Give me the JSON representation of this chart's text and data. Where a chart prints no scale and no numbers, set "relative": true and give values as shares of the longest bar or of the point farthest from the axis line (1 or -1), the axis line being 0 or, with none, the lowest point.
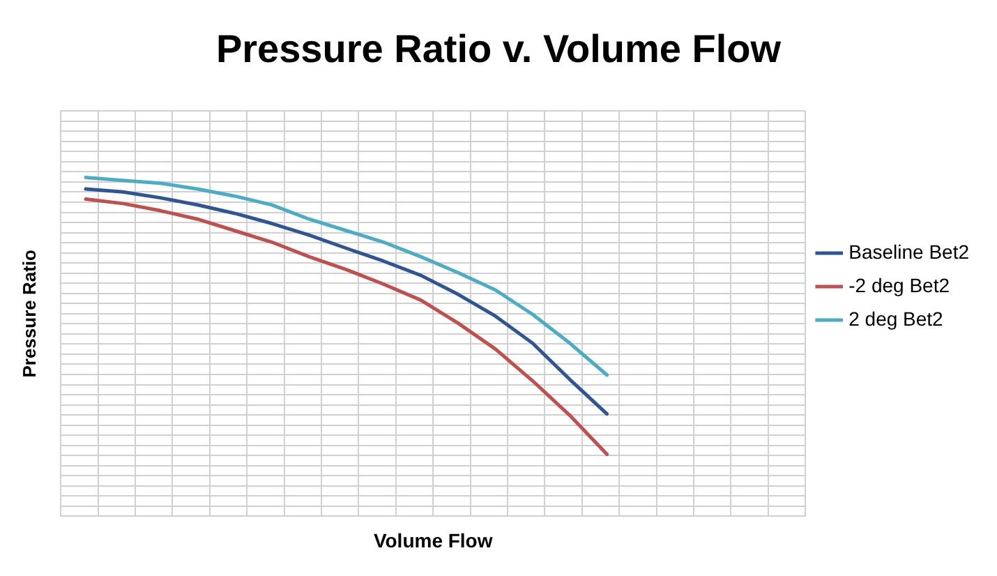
{
  "chart_data": {
    "type": "line",
    "title": "Pressure Ratio v. Volume Flow",
    "xlabel": "Volume Flow",
    "ylabel": "Pressure Ratio",
    "relative": true,
    "grid": true,
    "legend": "right",
    "marker": "none",
    "line_style": "solid",
    "categories": [
      null,
      null,
      null,
      null,
      null,
      null,
      null,
      null,
      null,
      null,
      null,
      null,
      null,
      null,
      null
    ],
    "series": [
      {
        "name": "Baseline Bet2",
        "color": "#2f5597",
        "values": [
          0.966,
          0.957,
          0.94,
          0.919,
          0.894,
          0.864,
          0.83,
          0.791,
          0.753,
          0.711,
          0.655,
          0.591,
          0.511,
          0.404,
          0.302
        ]
      },
      {
        "name": "-2 deg Bet2",
        "color": "#c0504d",
        "values": [
          0.936,
          0.923,
          0.902,
          0.877,
          0.843,
          0.809,
          0.766,
          0.728,
          0.685,
          0.638,
          0.57,
          0.494,
          0.4,
          0.298,
          0.183
        ]
      },
      {
        "name": "2 deg Bet2",
        "color": "#4bacc6",
        "values": [
          1,
          0.991,
          0.983,
          0.966,
          0.945,
          0.919,
          0.877,
          0.843,
          0.809,
          0.766,
          0.719,
          0.668,
          0.596,
          0.511,
          0.417
        ]
      }
    ]
  }
}
